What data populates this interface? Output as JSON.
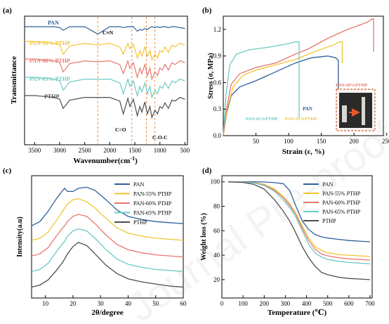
{
  "panels": {
    "a": {
      "label": "(a)",
      "xlabel": "Wavenumber(cm",
      "xlabel_sup": "-1",
      "xlabel_end": ")",
      "ylabel": "Transmittance"
    },
    "b": {
      "label": "(b)",
      "xlabel": "Strain (ε, %)",
      "ylabel": "Stress (σ, MPa)"
    },
    "c": {
      "label": "(c)",
      "xlabel": "2θ/degree",
      "ylabel": "Intensity(a.u)"
    },
    "d": {
      "label": "(d)",
      "xlabel": "Temperature (℃)",
      "ylabel": "Weight loss (%)"
    }
  },
  "watermark": "Journal Pre-proof",
  "colors": {
    "PAN": "#2d5f9a",
    "PAN-55% PTHP": "#f2c531",
    "PAN-60% PTHP": "#e8766f",
    "PAN-65% PTHP": "#6cc9c4",
    "PTHP": "#4d4d4d",
    "ref_line": "#f08a3a",
    "photo_box": "#e05a2a"
  },
  "chart_data": [
    {
      "panel": "a",
      "type": "line",
      "xlim": [
        3700,
        450
      ],
      "xticks": [
        3500,
        3000,
        2500,
        2000,
        1500,
        1000,
        500
      ],
      "yticks": [],
      "grid": false,
      "x": [
        3700,
        3500,
        3300,
        3100,
        3000,
        2930,
        2870,
        2800,
        2500,
        2240,
        2000,
        1800,
        1730,
        1640,
        1600,
        1530,
        1450,
        1400,
        1360,
        1300,
        1250,
        1200,
        1160,
        1100,
        1050,
        1000,
        950,
        900,
        830,
        760,
        700,
        600,
        500
      ],
      "series": [
        {
          "name": "PAN",
          "values": [
            100,
            100,
            100,
            100,
            99.5,
            98,
            99,
            100,
            100,
            96,
            100,
            100,
            99.5,
            100,
            100,
            100,
            97.5,
            98.5,
            98,
            99,
            98.5,
            99.5,
            100,
            99.5,
            100,
            99.5,
            100,
            100,
            99.5,
            100,
            100,
            99.5,
            99
          ]
        },
        {
          "name": "PAN-55% PTHP",
          "values": [
            100,
            100,
            99.5,
            99,
            98,
            93,
            95,
            97.5,
            99,
            98,
            99,
            97,
            93,
            99,
            96,
            98.5,
            91,
            95,
            92,
            97,
            92,
            95,
            90,
            93,
            91,
            95,
            94,
            97,
            94,
            98,
            97,
            99,
            98
          ]
        },
        {
          "name": "PAN-60% PTHP",
          "values": [
            100,
            100,
            99.5,
            99,
            98,
            93,
            95,
            97.5,
            99,
            98.5,
            99,
            97,
            92,
            99,
            95,
            98,
            90,
            95,
            92,
            97,
            91,
            95,
            89,
            93,
            91,
            95,
            94,
            97,
            94,
            98,
            97,
            99,
            98
          ]
        },
        {
          "name": "PAN-65% PTHP",
          "values": [
            100,
            100,
            99.5,
            99,
            98,
            93,
            95,
            97.5,
            99,
            99,
            99,
            97,
            91,
            99,
            95,
            98,
            90,
            95,
            92,
            97,
            91,
            95,
            89,
            93,
            91,
            95,
            94,
            97,
            94,
            98,
            97,
            99,
            98
          ]
        },
        {
          "name": "PTHP",
          "values": [
            100,
            100,
            99.5,
            99,
            98,
            93,
            95,
            97.5,
            99,
            99,
            99,
            97,
            90,
            98.5,
            94,
            98,
            89,
            94,
            91,
            96.5,
            90,
            94,
            88,
            92,
            90,
            94,
            93,
            96,
            93,
            97.5,
            97,
            99,
            98
          ]
        }
      ],
      "reference_lines": [
        2240,
        1560,
        1270,
        1100
      ],
      "annotations": [
        "C≡N",
        "C=O",
        "C-O-C"
      ]
    },
    {
      "panel": "b",
      "type": "line",
      "xlim": [
        0,
        245
      ],
      "ylim": [
        0,
        1.35
      ],
      "xticks": [
        50,
        100,
        150,
        200,
        250
      ],
      "yticks": [
        0.0,
        0.3,
        0.6,
        0.9,
        1.2
      ],
      "grid": false,
      "series": [
        {
          "name": "PAN",
          "x": [
            0,
            5,
            12,
            25,
            50,
            80,
            110,
            135,
            160,
            172,
            176,
            176
          ],
          "values": [
            0,
            0.25,
            0.45,
            0.55,
            0.62,
            0.72,
            0.82,
            0.88,
            0.9,
            0.88,
            0.85,
            0.1
          ]
        },
        {
          "name": "PAN-55% PTHP",
          "x": [
            0,
            6,
            15,
            30,
            50,
            80,
            110,
            140,
            170,
            178,
            182,
            182
          ],
          "values": [
            0,
            0.3,
            0.55,
            0.68,
            0.74,
            0.8,
            0.86,
            0.95,
            1.03,
            1.06,
            1.06,
            0.82
          ]
        },
        {
          "name": "PAN-60% PTHP",
          "x": [
            0,
            5,
            12,
            25,
            50,
            80,
            110,
            130,
            160,
            190,
            220,
            228,
            230,
            230
          ],
          "values": [
            0,
            0.3,
            0.58,
            0.7,
            0.77,
            0.82,
            0.92,
            0.98,
            1.1,
            1.2,
            1.28,
            1.32,
            1.32,
            0.95
          ]
        },
        {
          "name": "PAN-65% PTHP",
          "x": [
            0,
            4,
            10,
            20,
            40,
            70,
            100,
            110,
            116,
            116
          ],
          "values": [
            0,
            0.45,
            0.8,
            0.92,
            0.97,
            1.0,
            1.04,
            1.06,
            1.06,
            0.2
          ]
        }
      ],
      "annotations": [
        "PAN",
        "PAN-55%PTHP",
        "PAN-60%PTHP",
        "PAN-65%PTHP"
      ]
    },
    {
      "panel": "c",
      "type": "line",
      "xlim": [
        5,
        60
      ],
      "xticks": [
        10,
        20,
        30,
        40,
        50,
        60
      ],
      "yticks": [],
      "grid": false,
      "legend": "top-right",
      "x": [
        5,
        8,
        11,
        14,
        16,
        17,
        18,
        20,
        22,
        25,
        28,
        32,
        36,
        40,
        45,
        50,
        55,
        60
      ],
      "series": [
        {
          "name": "PAN",
          "values": [
            0.6,
            0.64,
            0.74,
            0.86,
            0.93,
            0.96,
            0.93,
            0.93,
            0.96,
            0.97,
            0.94,
            0.85,
            0.75,
            0.69,
            0.66,
            0.64,
            0.63,
            0.62
          ]
        },
        {
          "name": "PAN-55% PTHP",
          "values": [
            0.46,
            0.48,
            0.54,
            0.65,
            0.73,
            0.77,
            0.81,
            0.85,
            0.86,
            0.83,
            0.77,
            0.67,
            0.58,
            0.53,
            0.5,
            0.48,
            0.47,
            0.46
          ]
        },
        {
          "name": "PAN-60% PTHP",
          "values": [
            0.31,
            0.33,
            0.39,
            0.5,
            0.57,
            0.6,
            0.64,
            0.69,
            0.71,
            0.69,
            0.62,
            0.51,
            0.42,
            0.37,
            0.34,
            0.32,
            0.31,
            0.3
          ]
        },
        {
          "name": "PAN-65% PTHP",
          "values": [
            0.16,
            0.18,
            0.24,
            0.35,
            0.42,
            0.45,
            0.5,
            0.55,
            0.57,
            0.55,
            0.48,
            0.37,
            0.28,
            0.23,
            0.2,
            0.18,
            0.17,
            0.16
          ]
        },
        {
          "name": "PTHP",
          "values": [
            0.01,
            0.03,
            0.08,
            0.17,
            0.24,
            0.28,
            0.33,
            0.4,
            0.44,
            0.41,
            0.33,
            0.22,
            0.14,
            0.09,
            0.06,
            0.04,
            0.02,
            0.01
          ]
        }
      ]
    },
    {
      "panel": "d",
      "type": "line",
      "xlim": [
        0,
        710
      ],
      "ylim": [
        5,
        105
      ],
      "xticks": [
        0,
        100,
        200,
        300,
        400,
        500,
        600,
        700
      ],
      "yticks": [
        20,
        40,
        60,
        80,
        100
      ],
      "grid": false,
      "legend": "top-right",
      "x": [
        30,
        100,
        150,
        200,
        250,
        290,
        320,
        350,
        380,
        410,
        440,
        470,
        500,
        550,
        600,
        650,
        700
      ],
      "series": [
        {
          "name": "PAN",
          "values": [
            100,
            100,
            100,
            99.8,
            99.3,
            98.5,
            93,
            80,
            68,
            61,
            57,
            55,
            54,
            53,
            52,
            51.5,
            51
          ]
        },
        {
          "name": "PAN-55% PTHP",
          "values": [
            100,
            99.8,
            99.3,
            98,
            94,
            88,
            82,
            74,
            64,
            54,
            47,
            44,
            42,
            40.5,
            40,
            39.5,
            39
          ]
        },
        {
          "name": "PAN-60% PTHP",
          "values": [
            100,
            99.8,
            99.2,
            97.5,
            93,
            87,
            81,
            73,
            62,
            52,
            45,
            41,
            39.5,
            38,
            37,
            36.5,
            36
          ]
        },
        {
          "name": "PAN-65% PTHP",
          "values": [
            100,
            99.7,
            99,
            97,
            92,
            85,
            79,
            71,
            60,
            49,
            42,
            38.5,
            36.5,
            35,
            34,
            33.5,
            33
          ]
        },
        {
          "name": "PTHP",
          "values": [
            100,
            99.5,
            98,
            94,
            85,
            76,
            68,
            58,
            47,
            38,
            31,
            26,
            24,
            22,
            21,
            20.5,
            20
          ]
        }
      ]
    }
  ]
}
